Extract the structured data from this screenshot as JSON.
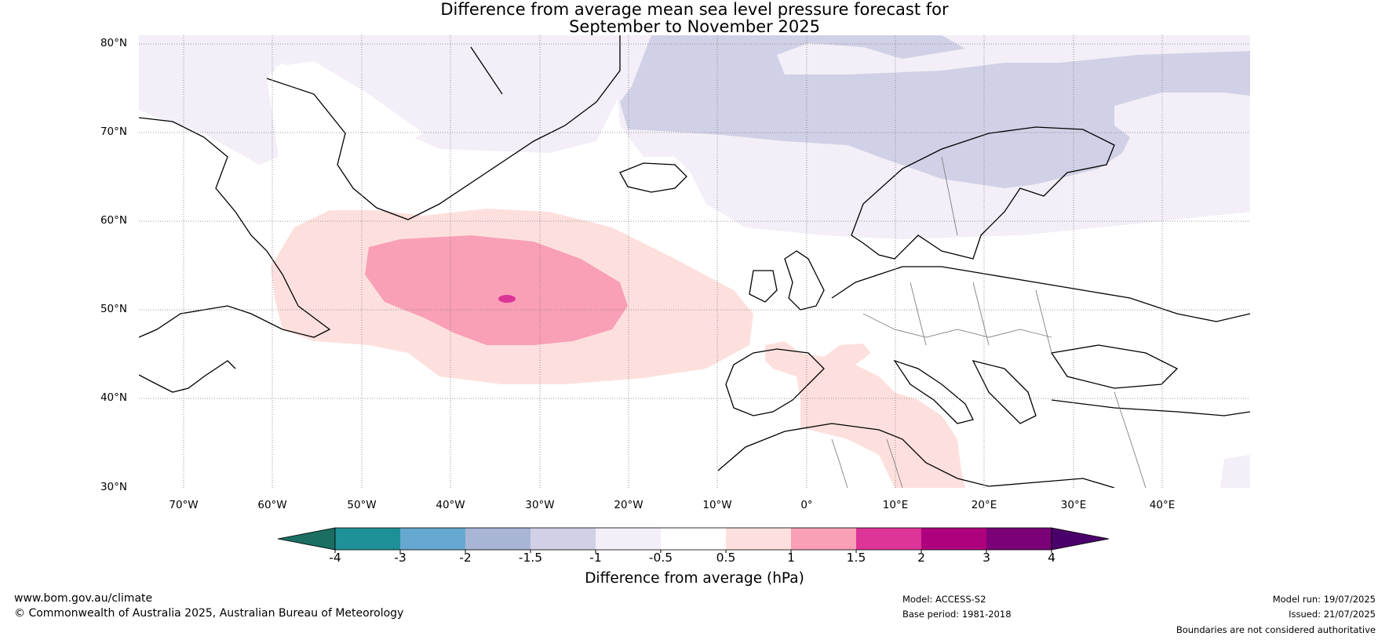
{
  "title": {
    "line1": "Difference from average mean sea level pressure forecast for",
    "line2": "September to November 2025"
  },
  "map": {
    "region": "North Atlantic and Europe",
    "lat_labels": [
      "80°N",
      "70°N",
      "60°N",
      "50°N",
      "40°N",
      "30°N"
    ],
    "lon_labels": [
      "70°W",
      "60°W",
      "50°W",
      "40°W",
      "30°W",
      "20°W",
      "10°W",
      "0°",
      "10°E",
      "20°E",
      "30°E",
      "40°E"
    ],
    "anomalies": [
      {
        "name": "negative anomaly over Norwegian Sea and Scandinavia",
        "range": "-1.5 to -1"
      },
      {
        "name": "positive anomaly over central North Atlantic",
        "range": "0.5 to 1.5+"
      },
      {
        "name": "positive anomaly over western Mediterranean",
        "range": "0.5 to 1"
      }
    ]
  },
  "colorbar": {
    "ticks": [
      "-4",
      "-3",
      "-2",
      "-1.5",
      "-1",
      "-0.5",
      "0.5",
      "1",
      "1.5",
      "2",
      "3",
      "4"
    ],
    "colors": [
      "#1a6e62",
      "#1e9198",
      "#66a8d0",
      "#a9b5d5",
      "#d0d1e6",
      "#f3eef7",
      "#ffffff",
      "#fde0dd",
      "#f99fb6",
      "#dd3497",
      "#ae017e",
      "#7a0177",
      "#4a006a"
    ],
    "label": "Difference from average (hPa)"
  },
  "footer": {
    "website": "www.bom.gov.au/climate",
    "copyright": "© Commonwealth of Australia 2025, Australian Bureau of Meteorology",
    "model": "Model: ACCESS-S2",
    "base_period": "Base period: 1981-2018",
    "model_run": "Model run: 19/07/2025",
    "issued": "Issued: 21/07/2025",
    "disclaimer": "Boundaries are not considered authoritative"
  }
}
